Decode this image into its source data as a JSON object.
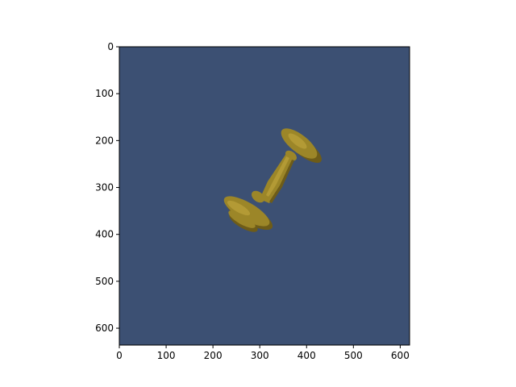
{
  "figure": {
    "image_background": "#3c5073",
    "object_color": "#9c8628",
    "object_shadow_color": "#6e5c18",
    "object_highlight_color": "#b39a35",
    "object": "candlestick"
  },
  "axes": {
    "xlim": [
      0,
      620
    ],
    "ylim": [
      0,
      636
    ],
    "y_inverted": true,
    "x_ticks": [
      {
        "value": 0,
        "label": "0"
      },
      {
        "value": 100,
        "label": "100"
      },
      {
        "value": 200,
        "label": "200"
      },
      {
        "value": 300,
        "label": "300"
      },
      {
        "value": 400,
        "label": "400"
      },
      {
        "value": 500,
        "label": "500"
      },
      {
        "value": 600,
        "label": "600"
      }
    ],
    "y_ticks": [
      {
        "value": 0,
        "label": "0"
      },
      {
        "value": 100,
        "label": "100"
      },
      {
        "value": 200,
        "label": "200"
      },
      {
        "value": 300,
        "label": "300"
      },
      {
        "value": 400,
        "label": "400"
      },
      {
        "value": 500,
        "label": "500"
      },
      {
        "value": 600,
        "label": "600"
      }
    ]
  }
}
